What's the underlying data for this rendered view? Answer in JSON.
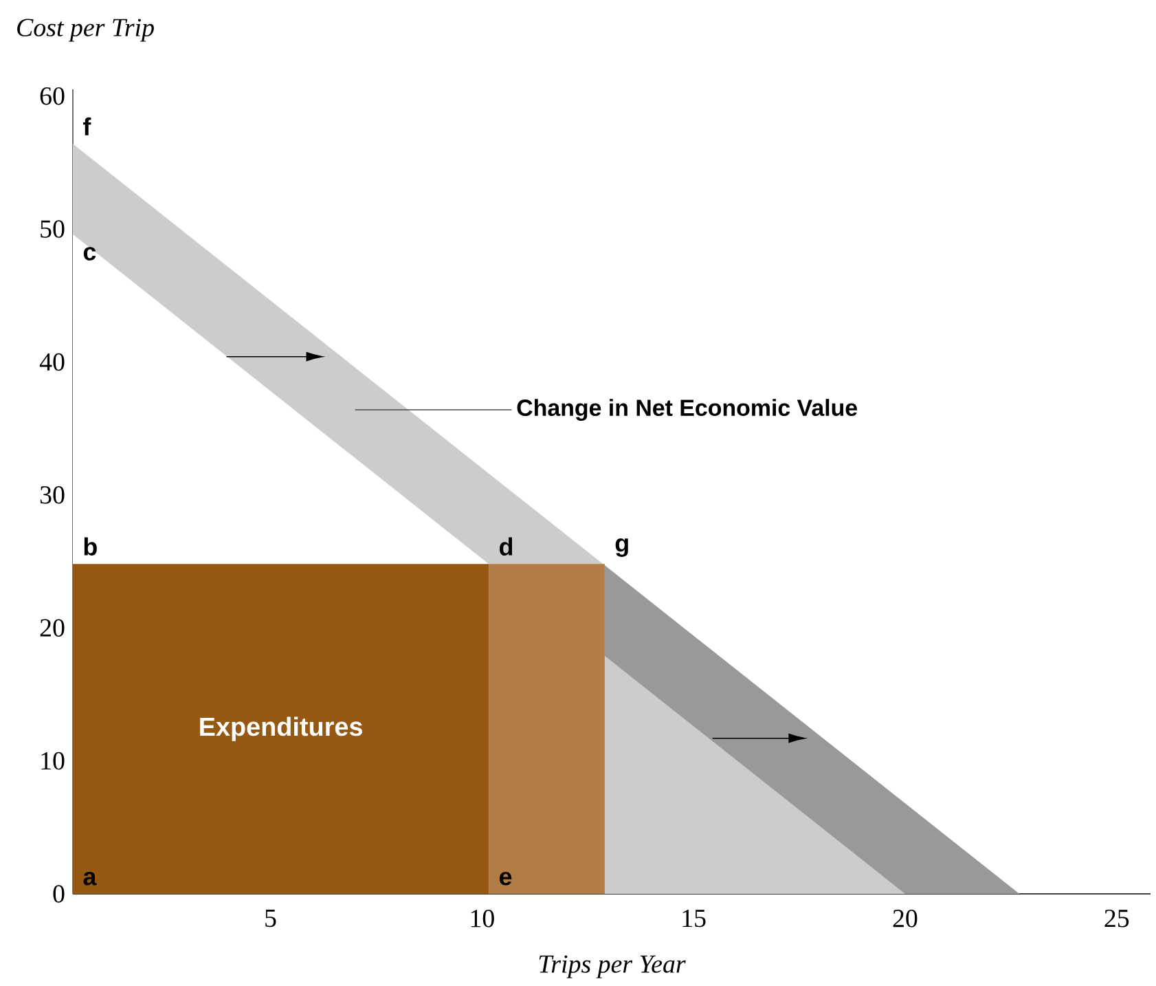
{
  "chart_data": {
    "type": "area",
    "xlabel": "Trips per Year",
    "ylabel": "Cost per Trip",
    "xlim": [
      0.33,
      25.8
    ],
    "ylim": [
      0,
      60.5
    ],
    "xticks": [
      5,
      10,
      15,
      20,
      25
    ],
    "yticks": [
      0,
      10,
      20,
      30,
      40,
      50,
      60
    ],
    "grid": false,
    "series": [
      {
        "color": "#cccccc",
        "x": [
          0.33,
          22.7
        ],
        "values": [
          56.4,
          0
        ]
      },
      {
        "color": "#999999",
        "x": [
          12.9,
          22.7
        ],
        "values": [
          24.7,
          0
        ]
      },
      {
        "color": "#ffffff",
        "x": [
          0.33,
          10.16
        ],
        "values": [
          49.6,
          24.8
        ]
      },
      {
        "color": "#cccccc",
        "x": [
          12.9,
          20.0
        ],
        "values": [
          17.9,
          0
        ]
      },
      {
        "name": "Expenditures",
        "color": "#955913",
        "x": [
          0.33,
          10.16
        ],
        "values": [
          24.8,
          24.8
        ]
      },
      {
        "color": "#b27d44",
        "x": [
          10.16,
          12.9
        ],
        "values": [
          24.8,
          24.8
        ]
      }
    ],
    "annotations": [
      {
        "text": "f",
        "x": 0.33,
        "y": 56.4
      },
      {
        "text": "c",
        "x": 0.33,
        "y": 49.6
      },
      {
        "text": "b",
        "x": 0.33,
        "y": 24.8
      },
      {
        "text": "d",
        "x": 10.16,
        "y": 24.8
      },
      {
        "text": "g",
        "x": 12.9,
        "y": 24.7
      },
      {
        "text": "a",
        "x": 0.33,
        "y": 0
      },
      {
        "text": "e",
        "x": 10.16,
        "y": 0
      },
      "Change in Net Economic Value"
    ]
  }
}
